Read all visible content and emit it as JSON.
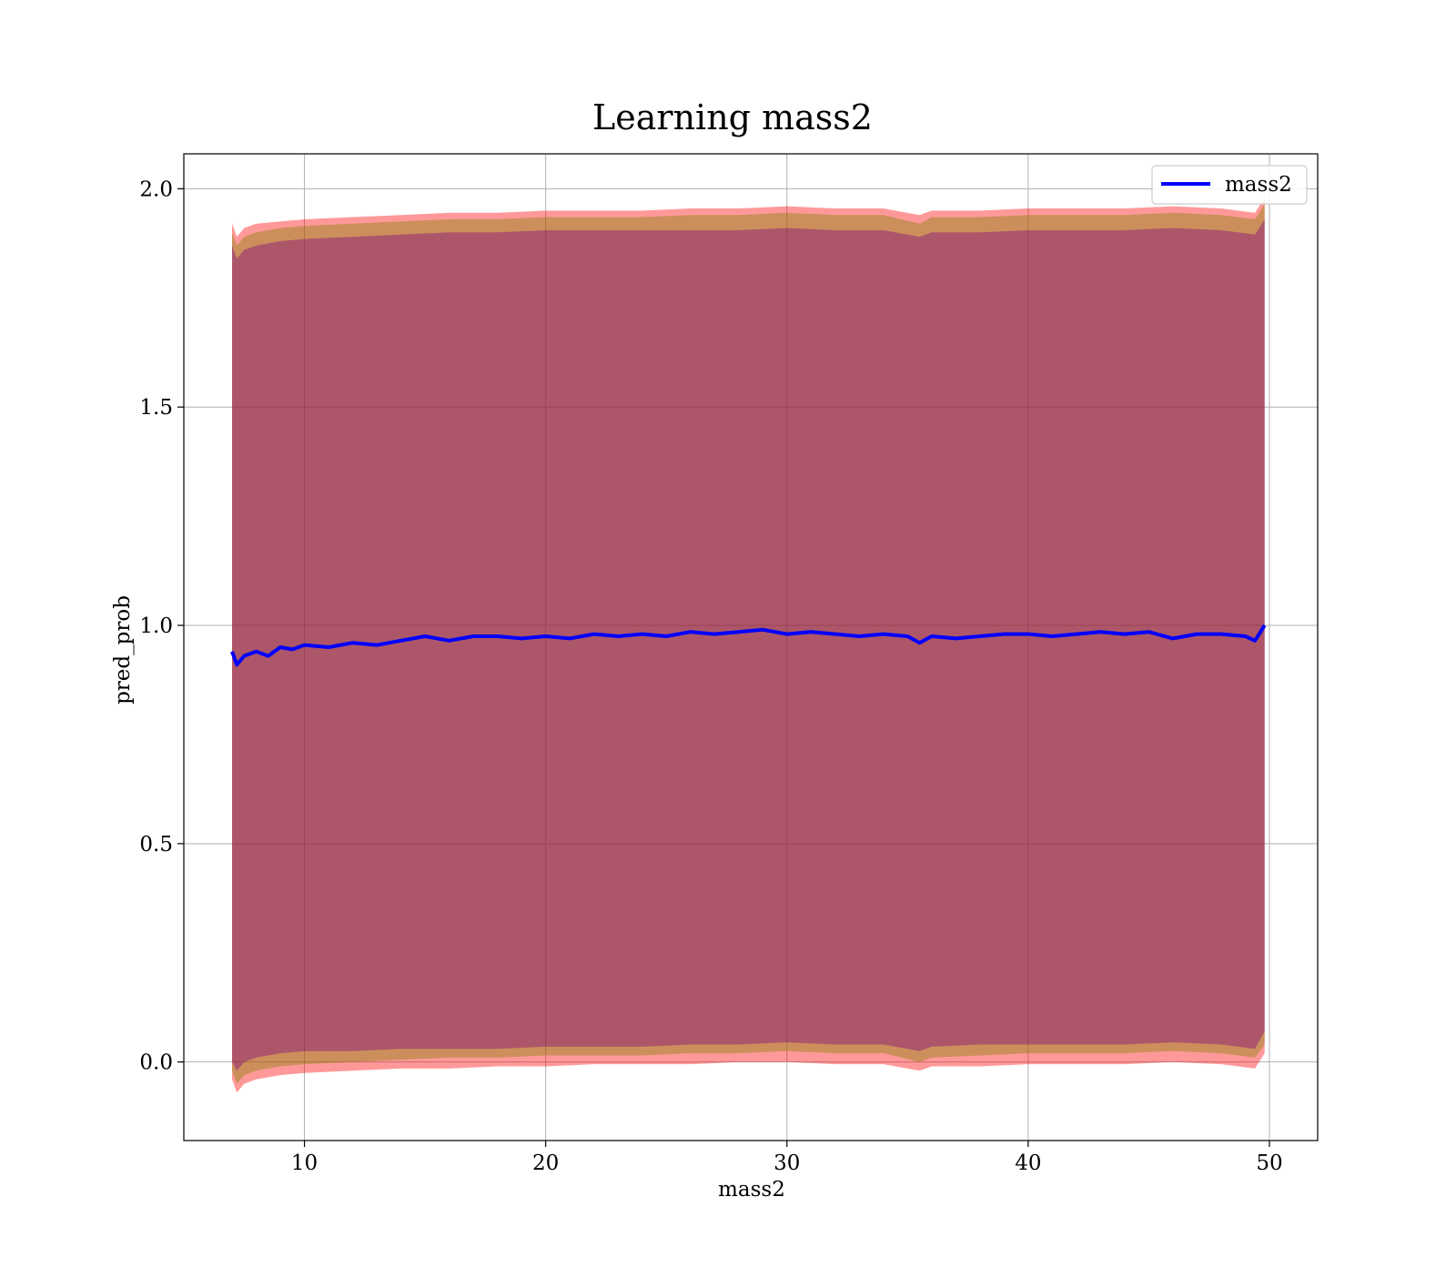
{
  "chart_data": {
    "type": "line",
    "title": "Learning mass2",
    "xlabel": "mass2",
    "ylabel": "pred_prob",
    "xlim": [
      5,
      52
    ],
    "ylim": [
      -0.18,
      2.08
    ],
    "xticks": [
      10,
      20,
      30,
      40,
      50
    ],
    "xtick_labels": [
      "10",
      "20",
      "30",
      "40",
      "50"
    ],
    "yticks": [
      0.0,
      0.5,
      1.0,
      1.5,
      2.0
    ],
    "ytick_labels": [
      "0.0",
      "0.5",
      "1.0",
      "1.5",
      "2.0"
    ],
    "grid": true,
    "legend_position": "top-right",
    "series": [
      {
        "name": "mass2",
        "color": "#0000ff",
        "x": [
          7.0,
          7.2,
          7.5,
          8.0,
          8.5,
          9.0,
          9.5,
          10.0,
          11.0,
          12.0,
          13.0,
          14.0,
          15.0,
          16.0,
          17.0,
          18.0,
          19.0,
          20.0,
          21.0,
          22.0,
          23.0,
          24.0,
          25.0,
          26.0,
          27.0,
          28.0,
          29.0,
          30.0,
          31.0,
          32.0,
          33.0,
          34.0,
          35.0,
          35.5,
          36.0,
          37.0,
          38.0,
          39.0,
          40.0,
          41.0,
          42.0,
          43.0,
          44.0,
          45.0,
          46.0,
          47.0,
          48.0,
          49.0,
          49.4,
          49.8
        ],
        "y": [
          0.94,
          0.91,
          0.93,
          0.94,
          0.93,
          0.95,
          0.945,
          0.955,
          0.95,
          0.96,
          0.955,
          0.965,
          0.975,
          0.965,
          0.975,
          0.975,
          0.97,
          0.975,
          0.97,
          0.98,
          0.975,
          0.98,
          0.975,
          0.985,
          0.98,
          0.985,
          0.99,
          0.98,
          0.985,
          0.98,
          0.975,
          0.98,
          0.975,
          0.96,
          0.975,
          0.97,
          0.975,
          0.98,
          0.98,
          0.975,
          0.98,
          0.985,
          0.98,
          0.985,
          0.97,
          0.98,
          0.98,
          0.975,
          0.965,
          1.0
        ]
      }
    ],
    "bands": [
      {
        "color": "#ff0000",
        "opacity": 0.4,
        "x": [
          7.0,
          7.2,
          7.5,
          8.0,
          9.0,
          10.0,
          12.0,
          14.0,
          16.0,
          18.0,
          20.0,
          22.0,
          24.0,
          26.0,
          28.0,
          30.0,
          32.0,
          34.0,
          35.5,
          36.0,
          38.0,
          40.0,
          42.0,
          44.0,
          46.0,
          48.0,
          49.4,
          49.8
        ],
        "upper": [
          1.92,
          1.89,
          1.91,
          1.92,
          1.925,
          1.93,
          1.935,
          1.94,
          1.945,
          1.945,
          1.95,
          1.95,
          1.95,
          1.955,
          1.955,
          1.96,
          1.955,
          1.955,
          1.94,
          1.95,
          1.95,
          1.955,
          1.955,
          1.955,
          1.96,
          1.955,
          1.945,
          1.98
        ],
        "lower": [
          -0.04,
          -0.07,
          -0.05,
          -0.04,
          -0.03,
          -0.025,
          -0.02,
          -0.015,
          -0.015,
          -0.01,
          -0.01,
          -0.005,
          -0.005,
          -0.005,
          0.0,
          0.0,
          -0.005,
          -0.005,
          -0.02,
          -0.01,
          -0.01,
          -0.005,
          -0.005,
          -0.005,
          0.0,
          -0.005,
          -0.015,
          0.02
        ]
      },
      {
        "color": "#808000",
        "opacity": 0.4,
        "x": [
          7.0,
          7.2,
          7.5,
          8.0,
          9.0,
          10.0,
          12.0,
          14.0,
          16.0,
          18.0,
          20.0,
          22.0,
          24.0,
          26.0,
          28.0,
          30.0,
          32.0,
          34.0,
          35.5,
          36.0,
          38.0,
          40.0,
          42.0,
          44.0,
          46.0,
          48.0,
          49.4,
          49.8
        ],
        "upper": [
          1.9,
          1.87,
          1.89,
          1.9,
          1.91,
          1.915,
          1.92,
          1.925,
          1.93,
          1.93,
          1.935,
          1.935,
          1.935,
          1.94,
          1.94,
          1.945,
          1.94,
          1.94,
          1.92,
          1.935,
          1.935,
          1.94,
          1.94,
          1.94,
          1.945,
          1.94,
          1.93,
          1.965
        ],
        "lower": [
          -0.02,
          -0.05,
          -0.03,
          -0.02,
          -0.01,
          -0.005,
          0.0,
          0.005,
          0.01,
          0.01,
          0.015,
          0.015,
          0.015,
          0.02,
          0.02,
          0.025,
          0.02,
          0.02,
          0.0,
          0.01,
          0.015,
          0.02,
          0.02,
          0.02,
          0.025,
          0.02,
          0.01,
          0.04
        ]
      },
      {
        "color": "#800080",
        "opacity": 0.4,
        "x": [
          7.0,
          7.2,
          7.5,
          8.0,
          9.0,
          10.0,
          12.0,
          14.0,
          16.0,
          18.0,
          20.0,
          22.0,
          24.0,
          26.0,
          28.0,
          30.0,
          32.0,
          34.0,
          35.5,
          36.0,
          38.0,
          40.0,
          42.0,
          44.0,
          46.0,
          48.0,
          49.4,
          49.8
        ],
        "upper": [
          1.87,
          1.84,
          1.86,
          1.87,
          1.88,
          1.885,
          1.89,
          1.895,
          1.9,
          1.9,
          1.905,
          1.905,
          1.905,
          1.905,
          1.905,
          1.91,
          1.905,
          1.905,
          1.89,
          1.9,
          1.9,
          1.905,
          1.905,
          1.905,
          1.91,
          1.905,
          1.895,
          1.93
        ],
        "lower": [
          0.0,
          -0.02,
          0.0,
          0.01,
          0.02,
          0.025,
          0.025,
          0.03,
          0.03,
          0.03,
          0.035,
          0.035,
          0.035,
          0.04,
          0.04,
          0.045,
          0.04,
          0.04,
          0.025,
          0.035,
          0.04,
          0.04,
          0.04,
          0.04,
          0.045,
          0.04,
          0.03,
          0.07
        ]
      }
    ]
  }
}
